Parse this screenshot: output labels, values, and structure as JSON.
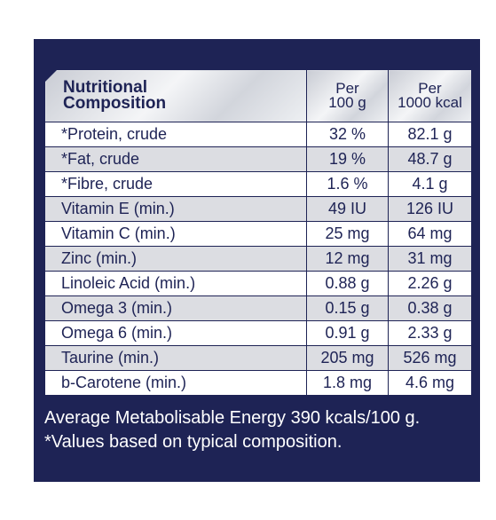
{
  "table": {
    "header": {
      "name_line1": "Nutritional",
      "name_line2": "Composition",
      "per100_line1": "Per",
      "per100_line2": "100 g",
      "per1000_line1": "Per",
      "per1000_line2": "1000 kcal"
    },
    "rows": [
      {
        "name": "*Protein, crude",
        "per100": "32 %",
        "per1000": "82.1 g"
      },
      {
        "name": "*Fat, crude",
        "per100": "19 %",
        "per1000": "48.7 g"
      },
      {
        "name": "*Fibre, crude",
        "per100": "1.6 %",
        "per1000": "4.1 g"
      },
      {
        "name": "Vitamin E (min.)",
        "per100": "49 IU",
        "per1000": "126 IU"
      },
      {
        "name": "Vitamin C (min.)",
        "per100": "25 mg",
        "per1000": "64 mg"
      },
      {
        "name": "Zinc (min.)",
        "per100": "12 mg",
        "per1000": "31 mg"
      },
      {
        "name": "Linoleic Acid (min.)",
        "per100": "0.88 g",
        "per1000": "2.26 g"
      },
      {
        "name": "Omega 3 (min.)",
        "per100": "0.15 g",
        "per1000": "0.38 g"
      },
      {
        "name": "Omega 6 (min.)",
        "per100": "0.91 g",
        "per1000": "2.33 g"
      },
      {
        "name": "Taurine (min.)",
        "per100": "205 mg",
        "per1000": "526 mg"
      },
      {
        "name": "b-Carotene (min.)",
        "per100": "1.8 mg",
        "per1000": "4.6 mg"
      }
    ]
  },
  "notes": {
    "energy": "Average Metabolisable Energy 390 kcals/100 g.",
    "footnote": "*Values based on typical composition."
  },
  "colors": {
    "panel": "#1e2355",
    "row_grey": "#dcdde2",
    "row_white": "#ffffff"
  }
}
